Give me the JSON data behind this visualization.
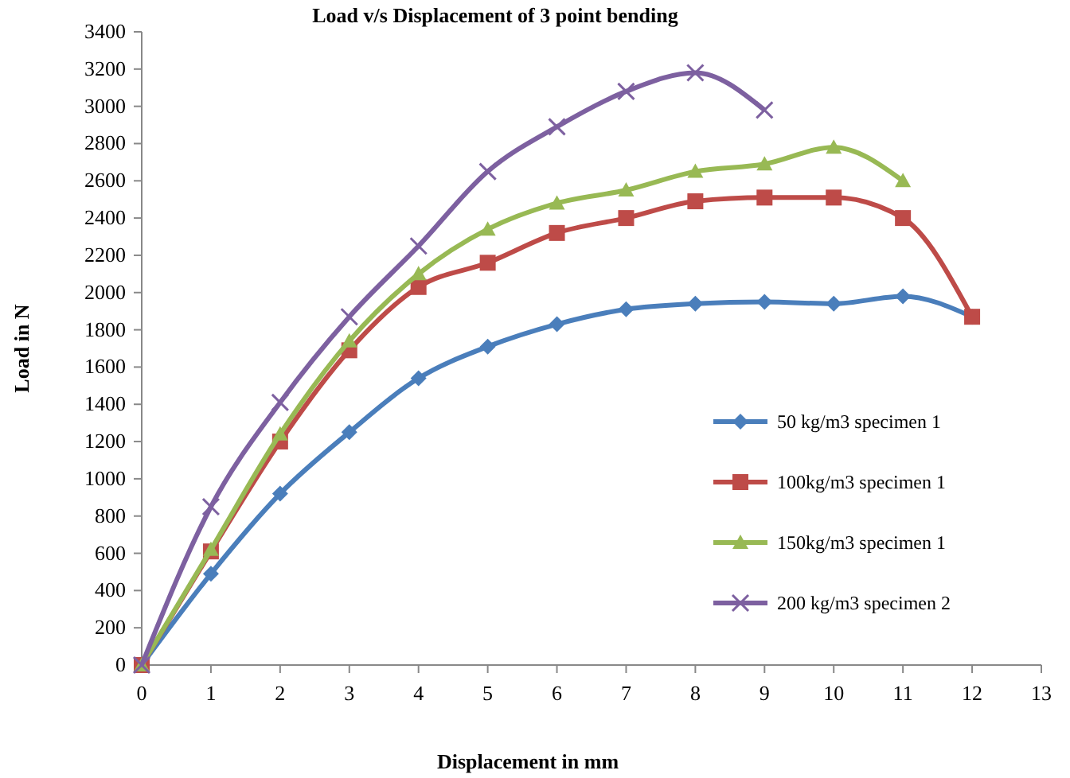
{
  "chart_data": {
    "type": "line",
    "title": "Load v/s Displacement of 3 point bending",
    "xlabel": "Displacement in mm",
    "ylabel": "Load in N",
    "x": [
      0,
      1,
      2,
      3,
      4,
      5,
      6,
      7,
      8,
      9,
      10,
      11,
      12
    ],
    "xlim": [
      0,
      13
    ],
    "xticks": [
      0,
      1,
      2,
      3,
      4,
      5,
      6,
      7,
      8,
      9,
      10,
      11,
      12,
      13
    ],
    "ylim": [
      0,
      3400
    ],
    "yticks": [
      0,
      200,
      400,
      600,
      800,
      1000,
      1200,
      1400,
      1600,
      1800,
      2000,
      2200,
      2400,
      2600,
      2800,
      3000,
      3200,
      3400
    ],
    "grid": false,
    "legend": "right",
    "series": [
      {
        "name": "50 kg/m3 specimen 1",
        "color": "#4a7ebb",
        "marker": "diamond",
        "values": [
          0,
          490,
          920,
          1250,
          1540,
          1710,
          1830,
          1910,
          1940,
          1950,
          1940,
          1980,
          1870
        ]
      },
      {
        "name": "100kg/m3 specimen 1",
        "color": "#be4b48",
        "marker": "square",
        "values": [
          0,
          610,
          1200,
          1690,
          2030,
          2160,
          2320,
          2400,
          2490,
          2510,
          2510,
          2400,
          1870
        ]
      },
      {
        "name": "150kg/m3 specimen 1",
        "color": "#98b954",
        "marker": "triangle",
        "values": [
          0,
          620,
          1240,
          1740,
          2100,
          2340,
          2480,
          2550,
          2650,
          2690,
          2780,
          2600,
          null
        ]
      },
      {
        "name": "200 kg/m3 specimen 2",
        "color": "#7d60a0",
        "marker": "cross",
        "values": [
          0,
          850,
          1410,
          1870,
          2250,
          2650,
          2890,
          3080,
          3180,
          2980,
          null,
          null,
          null
        ]
      }
    ]
  }
}
